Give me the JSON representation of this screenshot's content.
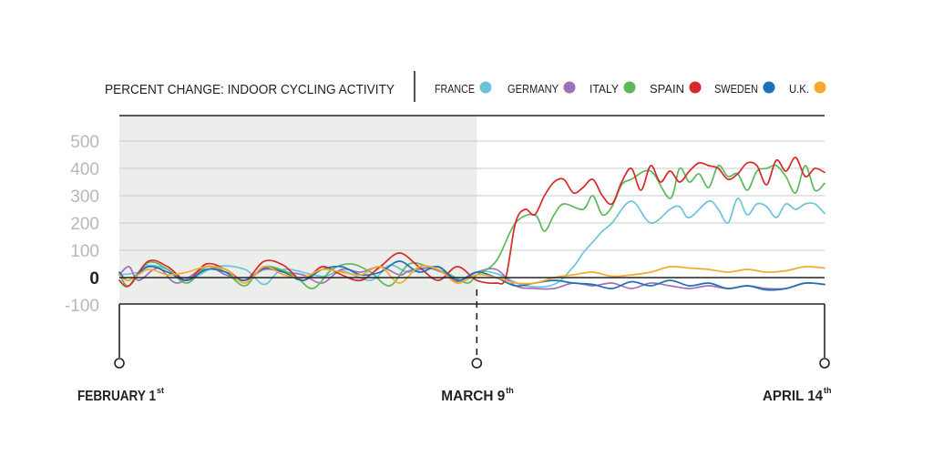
{
  "chart_data": {
    "type": "line",
    "title": "PERCENT CHANGE: INDOOR CYCLING ACTIVITY",
    "xlabel": "",
    "ylabel": "",
    "ylim": [
      -100,
      500
    ],
    "yticks": [
      "500",
      "400",
      "300",
      "200",
      "100",
      "0",
      "-100"
    ],
    "ytick_values": [
      500,
      400,
      300,
      200,
      100,
      0,
      -100
    ],
    "grid": true,
    "legend_position": "top",
    "shaded_period": "February 1 to March 9",
    "x_labels": [
      {
        "text": "FEBRUARY 1",
        "sup": "st"
      },
      {
        "text": "MARCH 9",
        "sup": "th"
      },
      {
        "text": "APRIL 14",
        "sup": "th"
      }
    ],
    "x_range_days": [
      0,
      73
    ],
    "marker_day": 37,
    "series": [
      {
        "name": "FRANCE",
        "color": "#6bc4d8",
        "x": [
          0,
          2,
          3,
          5,
          7,
          10,
          13,
          15,
          17,
          21,
          23,
          26,
          28,
          30,
          33,
          35,
          37,
          39,
          42,
          45,
          47,
          48,
          49,
          50,
          51,
          53,
          55,
          57,
          58,
          59,
          61,
          62,
          63,
          64,
          65,
          66,
          67,
          68,
          69,
          70,
          71,
          72,
          73
        ],
        "y": [
          10,
          20,
          45,
          30,
          -10,
          40,
          30,
          -25,
          30,
          5,
          25,
          -10,
          45,
          20,
          40,
          -20,
          20,
          15,
          -30,
          -25,
          40,
          90,
          130,
          170,
          200,
          280,
          200,
          250,
          260,
          220,
          280,
          250,
          200,
          290,
          230,
          270,
          260,
          220,
          270,
          250,
          270,
          270,
          235
        ]
      },
      {
        "name": "GERMANY",
        "color": "#a36fb8",
        "x": [
          0,
          1,
          2,
          4,
          6,
          9,
          11,
          13,
          15,
          17,
          19,
          21,
          23,
          25,
          27,
          29,
          30,
          32,
          34,
          35,
          37,
          39,
          41,
          43,
          45,
          47,
          49,
          51,
          53,
          55,
          57,
          59,
          61,
          63,
          65,
          67,
          69,
          71,
          73
        ],
        "y": [
          10,
          40,
          -10,
          35,
          -20,
          40,
          10,
          -10,
          30,
          20,
          10,
          -20,
          30,
          20,
          40,
          10,
          25,
          35,
          10,
          -15,
          20,
          30,
          -30,
          -40,
          -40,
          -20,
          -30,
          -20,
          -40,
          -20,
          -30,
          -40,
          -30,
          -40,
          -30,
          -40,
          -40,
          -20,
          -25
        ]
      },
      {
        "name": "ITALY",
        "color": "#5db85c",
        "x": [
          0,
          1,
          3,
          5,
          7,
          9,
          11,
          13,
          15,
          18,
          20,
          22,
          24,
          26,
          28,
          30,
          32,
          34,
          36,
          37,
          39,
          41,
          43,
          44,
          45,
          46,
          48,
          49,
          50,
          51,
          52,
          53,
          55,
          57,
          58,
          59,
          60,
          61,
          62,
          63,
          64,
          65,
          66,
          67,
          68,
          69,
          70,
          71,
          72,
          73
        ],
        "y": [
          15,
          -30,
          55,
          30,
          -20,
          40,
          20,
          -30,
          40,
          10,
          -40,
          30,
          50,
          20,
          -30,
          50,
          40,
          15,
          -20,
          10,
          60,
          200,
          230,
          170,
          230,
          270,
          250,
          300,
          230,
          260,
          340,
          360,
          390,
          290,
          400,
          350,
          380,
          330,
          410,
          370,
          380,
          320,
          390,
          400,
          410,
          370,
          310,
          410,
          320,
          345
        ]
      },
      {
        "name": "SPAIN",
        "color": "#d8282b",
        "x": [
          0,
          1,
          3,
          5,
          7,
          9,
          11,
          13,
          15,
          17,
          19,
          21,
          23,
          25,
          27,
          29,
          31,
          33,
          35,
          37,
          39,
          40,
          41,
          42,
          43,
          44,
          45,
          46,
          47,
          48,
          49,
          50,
          51,
          52,
          53,
          54,
          55,
          56,
          57,
          58,
          59,
          60,
          61,
          62,
          63,
          64,
          65,
          66,
          67,
          68,
          69,
          70,
          71,
          72,
          73
        ],
        "y": [
          -10,
          -30,
          60,
          40,
          -10,
          50,
          30,
          -10,
          60,
          45,
          -10,
          40,
          10,
          -10,
          40,
          90,
          40,
          -10,
          40,
          -10,
          -20,
          0,
          200,
          250,
          230,
          300,
          350,
          360,
          310,
          330,
          360,
          300,
          270,
          350,
          400,
          320,
          410,
          350,
          390,
          350,
          390,
          420,
          410,
          400,
          360,
          380,
          420,
          410,
          340,
          430,
          390,
          440,
          370,
          400,
          385
        ]
      },
      {
        "name": "SWEDEN",
        "color": "#1f70b8",
        "x": [
          0,
          1,
          3,
          5,
          7,
          9,
          11,
          13,
          15,
          17,
          19,
          21,
          23,
          25,
          27,
          29,
          31,
          33,
          35,
          37,
          39,
          41,
          43,
          45,
          47,
          49,
          51,
          53,
          55,
          57,
          59,
          61,
          63,
          65,
          67,
          69,
          71,
          73
        ],
        "y": [
          20,
          -10,
          40,
          20,
          -10,
          30,
          20,
          -10,
          35,
          20,
          -10,
          30,
          40,
          10,
          20,
          60,
          20,
          40,
          -10,
          20,
          0,
          -30,
          -20,
          -10,
          -20,
          -25,
          -40,
          -15,
          -30,
          -10,
          -30,
          -20,
          -40,
          -30,
          -45,
          -40,
          -20,
          -25
        ]
      },
      {
        "name": "U.K.",
        "color": "#f5aa2e",
        "x": [
          0,
          1,
          3,
          5,
          7,
          9,
          11,
          13,
          15,
          17,
          19,
          21,
          23,
          25,
          27,
          29,
          31,
          33,
          35,
          37,
          39,
          41,
          43,
          45,
          47,
          49,
          51,
          53,
          55,
          57,
          59,
          61,
          63,
          65,
          67,
          69,
          71,
          73
        ],
        "y": [
          10,
          -10,
          30,
          10,
          20,
          40,
          30,
          -20,
          40,
          10,
          0,
          30,
          20,
          10,
          40,
          -20,
          40,
          30,
          -20,
          10,
          0,
          -20,
          -20,
          0,
          10,
          20,
          5,
          10,
          20,
          40,
          35,
          30,
          20,
          30,
          20,
          25,
          40,
          35
        ]
      }
    ]
  }
}
